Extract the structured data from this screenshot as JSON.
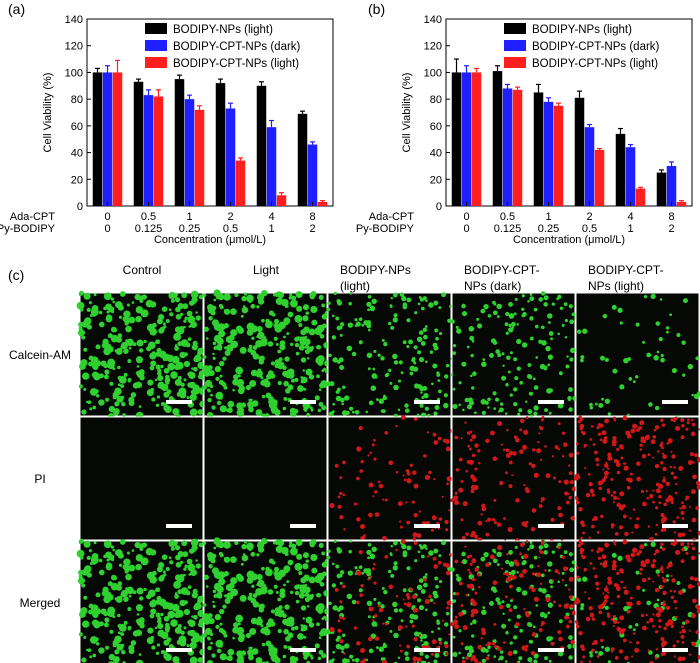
{
  "panel_a_label": "(a)",
  "panel_b_label": "(b)",
  "panel_c_label": "(c)",
  "colors": {
    "bodipy_nps_light": "#000000",
    "bodipy_cpt_nps_dark": "#1f1fff",
    "bodipy_cpt_nps_light": "#ff1f1f",
    "live_cells": "#2fd02f",
    "dead_cells": "#d01818",
    "micrograph_bg": "#050805",
    "scale_bar": "#ffffff"
  },
  "chart_data": [
    {
      "type": "bar",
      "panel": "a",
      "title": "",
      "ylabel": "Cell Viability (%)",
      "xlabel": "Concentration (μmol/L)",
      "ylim": [
        0,
        140
      ],
      "yticks": [
        0,
        20,
        40,
        60,
        80,
        100,
        120,
        140
      ],
      "row_labels": [
        "Ada-CPT",
        "Py-BODIPY"
      ],
      "categories_ada_cpt": [
        "0",
        "0.5",
        "1",
        "2",
        "4",
        "8"
      ],
      "categories_py_bodipy": [
        "0",
        "0.125",
        "0.25",
        "0.5",
        "1",
        "2"
      ],
      "legend_position": "top-right",
      "series": [
        {
          "name": "BODIPY-NPs (light)",
          "values": [
            100,
            93,
            95,
            92,
            90,
            69
          ],
          "errors": [
            3,
            2,
            3,
            3,
            3,
            2
          ]
        },
        {
          "name": "BODIPY-CPT-NPs (dark)",
          "values": [
            100,
            83,
            80,
            73,
            59,
            46
          ],
          "errors": [
            5,
            4,
            3,
            4,
            5,
            2
          ]
        },
        {
          "name": "BODIPY-CPT-NPs (light)",
          "values": [
            100,
            82,
            72,
            34,
            8,
            3
          ],
          "errors": [
            9,
            5,
            3,
            2,
            2,
            1
          ]
        }
      ]
    },
    {
      "type": "bar",
      "panel": "b",
      "title": "",
      "ylabel": "Cell Viability (%)",
      "xlabel": "Concentration (μmol/L)",
      "ylim": [
        0,
        140
      ],
      "yticks": [
        0,
        20,
        40,
        60,
        80,
        100,
        120,
        140
      ],
      "row_labels": [
        "Ada-CPT",
        "Py-BODIPY"
      ],
      "categories_ada_cpt": [
        "0",
        "0.5",
        "1",
        "2",
        "4",
        "8"
      ],
      "categories_py_bodipy": [
        "0",
        "0.125",
        "0.25",
        "0.5",
        "1",
        "2"
      ],
      "legend_position": "top-right",
      "series": [
        {
          "name": "BODIPY-NPs (light)",
          "values": [
            100,
            101,
            85,
            81,
            54,
            25
          ],
          "errors": [
            10,
            4,
            6,
            5,
            4,
            2
          ]
        },
        {
          "name": "BODIPY-CPT-NPs (dark)",
          "values": [
            100,
            88,
            78,
            59,
            44,
            30
          ],
          "errors": [
            5,
            3,
            3,
            2,
            2,
            3
          ]
        },
        {
          "name": "BODIPY-CPT-NPs (light)",
          "values": [
            100,
            87,
            75,
            42,
            13,
            3
          ],
          "errors": [
            3,
            2,
            2,
            1,
            1,
            1
          ]
        }
      ]
    }
  ],
  "micrographs": {
    "columns": [
      "Control",
      "Light",
      "BODIPY-NPs (light)",
      "BODIPY-CPT-NPs (dark)",
      "BODIPY-CPT-NPs (light)"
    ],
    "columns_display": [
      [
        "Control"
      ],
      [
        "Light"
      ],
      [
        "BODIPY-NPs",
        "(light)"
      ],
      [
        "BODIPY-CPT-",
        "NPs (dark)"
      ],
      [
        "BODIPY-CPT-",
        "NPs (light)"
      ]
    ],
    "rows": [
      "Calcein-AM",
      "PI",
      "Merged"
    ],
    "live_density": [
      1.0,
      1.0,
      0.55,
      0.5,
      0.15
    ],
    "dead_density": [
      0.0,
      0.0,
      0.35,
      0.5,
      0.9
    ]
  }
}
